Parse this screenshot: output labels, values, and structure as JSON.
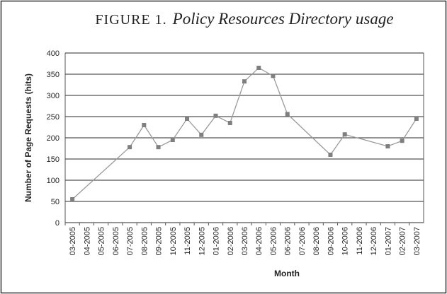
{
  "chart_data": {
    "type": "line",
    "title_prefix": "FIGURE 1.",
    "title": "Policy Resources Directory usage",
    "xlabel": "Month",
    "ylabel": "Number of Page Requests (hits)",
    "categories": [
      "03-2005",
      "04-2005",
      "05-2005",
      "06-2005",
      "07-2005",
      "08-2005",
      "09-2005",
      "10-2005",
      "11-2005",
      "12-2005",
      "01-2006",
      "02-2006",
      "03-2006",
      "04-2006",
      "05-2006",
      "06-2006",
      "07-2006",
      "08-2006",
      "09-2006",
      "10-2006",
      "11-2006",
      "12-2006",
      "01-2007",
      "02-2007",
      "03-2007"
    ],
    "series": [
      {
        "name": "hits",
        "color": "#9a9a9a",
        "marker_color": "#7f7f7f",
        "x": [
          "03-2005",
          "07-2005",
          "08-2005",
          "09-2005",
          "10-2005",
          "11-2005",
          "12-2005",
          "01-2006",
          "02-2006",
          "03-2006",
          "04-2006",
          "05-2006",
          "06-2006",
          "09-2006",
          "10-2006",
          "01-2007",
          "02-2007",
          "03-2007"
        ],
        "values": [
          55,
          178,
          230,
          178,
          195,
          245,
          207,
          252,
          235,
          333,
          365,
          346,
          256,
          160,
          208,
          180,
          193,
          245
        ]
      }
    ],
    "ylim": [
      0,
      400
    ],
    "yticks": [
      0,
      50,
      100,
      150,
      200,
      250,
      300,
      350,
      400
    ],
    "grid": true
  }
}
